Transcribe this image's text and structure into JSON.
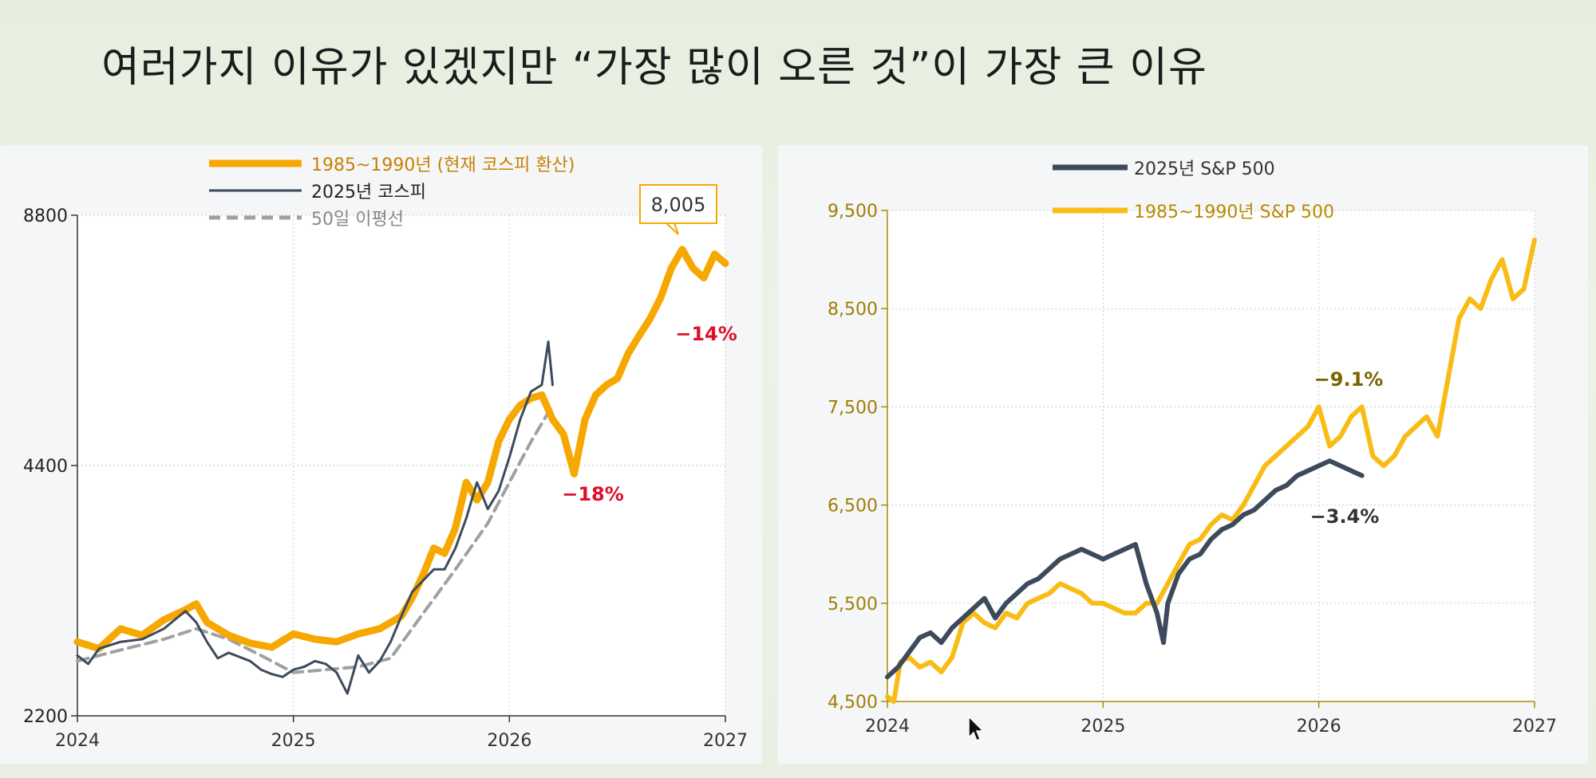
{
  "title": "여러가지 이유가 있겠지만 “가장 많이 오른 것”이 가장 큰 이유",
  "colors": {
    "orange": "#f6a800",
    "yellow": "#f8bc14",
    "dark": "#3d4a5c",
    "gray": "#a0a0a0",
    "red": "#e0102a",
    "olive": "#7a6400",
    "axis_left": "#222222",
    "axis_right": "#b08800"
  },
  "chart_data": [
    {
      "type": "line",
      "x_ticks": [
        "2024",
        "2025",
        "2026",
        "2027"
      ],
      "y_ticks": [
        "2200",
        "4400",
        "8800"
      ],
      "y_scale": "log",
      "ylim": [
        2200,
        8800
      ],
      "xlim": [
        2024,
        2027
      ],
      "grid": true,
      "legend_position": "top-center",
      "legend": [
        "1985~1990년 (현재 코스피 환산)",
        "2025년 코스피",
        "50일 이평선"
      ],
      "series": [
        {
          "name": "1985~1990년 (현재 코스피 환산)",
          "color": "#f6a800",
          "x": [
            2024.0,
            2024.1,
            2024.2,
            2024.3,
            2024.4,
            2024.5,
            2024.55,
            2024.6,
            2024.7,
            2024.8,
            2024.9,
            2025.0,
            2025.1,
            2025.2,
            2025.3,
            2025.4,
            2025.5,
            2025.55,
            2025.6,
            2025.65,
            2025.7,
            2025.75,
            2025.8,
            2025.85,
            2025.9,
            2025.95,
            2026.0,
            2026.05,
            2026.1,
            2026.15,
            2026.2,
            2026.25,
            2026.3,
            2026.35,
            2026.4,
            2026.45,
            2026.5,
            2026.55,
            2026.6,
            2026.65,
            2026.7,
            2026.75,
            2026.8,
            2026.85,
            2026.9,
            2026.95,
            2027.0
          ],
          "values": [
            2700,
            2650,
            2800,
            2750,
            2870,
            2950,
            3000,
            2850,
            2750,
            2690,
            2660,
            2760,
            2720,
            2700,
            2760,
            2800,
            2900,
            3050,
            3250,
            3500,
            3450,
            3700,
            4200,
            4000,
            4200,
            4700,
            5000,
            5200,
            5300,
            5350,
            5000,
            4800,
            4300,
            5000,
            5350,
            5500,
            5600,
            6000,
            6300,
            6600,
            7000,
            7600,
            8005,
            7600,
            7400,
            7900,
            7700
          ]
        },
        {
          "name": "2025년 코스피",
          "color": "#3d4a5c",
          "x": [
            2024.0,
            2024.05,
            2024.1,
            2024.2,
            2024.3,
            2024.4,
            2024.5,
            2024.55,
            2024.6,
            2024.65,
            2024.7,
            2024.8,
            2024.85,
            2024.9,
            2024.95,
            2025.0,
            2025.05,
            2025.1,
            2025.15,
            2025.2,
            2025.25,
            2025.3,
            2025.35,
            2025.4,
            2025.45,
            2025.5,
            2025.55,
            2025.6,
            2025.65,
            2025.7,
            2025.75,
            2025.8,
            2025.85,
            2025.9,
            2025.95,
            2026.0,
            2026.05,
            2026.1,
            2026.15,
            2026.18,
            2026.2
          ],
          "values": [
            2600,
            2540,
            2650,
            2700,
            2720,
            2800,
            2940,
            2850,
            2700,
            2580,
            2620,
            2560,
            2500,
            2470,
            2450,
            2500,
            2520,
            2560,
            2540,
            2480,
            2340,
            2600,
            2480,
            2560,
            2700,
            2900,
            3100,
            3200,
            3300,
            3300,
            3500,
            3800,
            4200,
            3900,
            4100,
            4500,
            5000,
            5400,
            5500,
            6200,
            5500
          ]
        },
        {
          "name": "50일 이평선",
          "color": "#a0a0a0",
          "x": [
            2024.0,
            2024.2,
            2024.4,
            2024.55,
            2024.7,
            2024.85,
            2025.0,
            2025.15,
            2025.3,
            2025.45,
            2025.6,
            2025.75,
            2025.9,
            2026.0,
            2026.1,
            2026.2
          ],
          "values": [
            2560,
            2640,
            2720,
            2800,
            2720,
            2600,
            2480,
            2500,
            2520,
            2580,
            2920,
            3300,
            3750,
            4200,
            4700,
            5200
          ]
        }
      ]
    },
    {
      "type": "line",
      "x_ticks": [
        "2024",
        "2025",
        "2026",
        "2027"
      ],
      "y_ticks": [
        "4,500",
        "5,500",
        "6,500",
        "7,500",
        "8,500",
        "9,500"
      ],
      "ylim": [
        4500,
        9500
      ],
      "xlim": [
        2024,
        2027
      ],
      "grid": true,
      "legend_position": "top-center",
      "legend": [
        "2025년 S&P 500",
        "1985~1990년 S&P 500"
      ],
      "series": [
        {
          "name": "2025년 S&P 500",
          "color": "#3d4a5c",
          "x": [
            2024.0,
            2024.05,
            2024.1,
            2024.15,
            2024.2,
            2024.25,
            2024.3,
            2024.35,
            2024.4,
            2024.45,
            2024.5,
            2024.55,
            2024.6,
            2024.65,
            2024.7,
            2024.75,
            2024.8,
            2024.85,
            2024.9,
            2024.95,
            2025.0,
            2025.05,
            2025.1,
            2025.15,
            2025.2,
            2025.25,
            2025.28,
            2025.3,
            2025.35,
            2025.4,
            2025.45,
            2025.5,
            2025.55,
            2025.6,
            2025.65,
            2025.7,
            2025.75,
            2025.8,
            2025.85,
            2025.9,
            2025.95,
            2026.0,
            2026.05,
            2026.1,
            2026.15,
            2026.2
          ],
          "values": [
            4750,
            4850,
            5000,
            5150,
            5200,
            5100,
            5250,
            5350,
            5450,
            5550,
            5350,
            5500,
            5600,
            5700,
            5750,
            5850,
            5950,
            6000,
            6050,
            6000,
            5950,
            6000,
            6050,
            6100,
            5700,
            5400,
            5100,
            5500,
            5800,
            5950,
            6000,
            6150,
            6250,
            6300,
            6400,
            6450,
            6550,
            6650,
            6700,
            6800,
            6850,
            6900,
            6950,
            6900,
            6850,
            6800
          ]
        },
        {
          "name": "1985~1990년 S&P 500",
          "color": "#f8bc14",
          "x": [
            2024.0,
            2024.03,
            2024.06,
            2024.1,
            2024.15,
            2024.2,
            2024.25,
            2024.3,
            2024.35,
            2024.4,
            2024.45,
            2024.5,
            2024.55,
            2024.6,
            2024.65,
            2024.7,
            2024.75,
            2024.8,
            2024.85,
            2024.9,
            2024.95,
            2025.0,
            2025.05,
            2025.1,
            2025.15,
            2025.2,
            2025.25,
            2025.3,
            2025.35,
            2025.4,
            2025.45,
            2025.5,
            2025.55,
            2025.6,
            2025.65,
            2025.7,
            2025.75,
            2025.8,
            2025.85,
            2025.9,
            2025.95,
            2026.0,
            2026.05,
            2026.1,
            2026.15,
            2026.2,
            2026.25,
            2026.3,
            2026.35,
            2026.4,
            2026.45,
            2026.5,
            2026.55,
            2026.6,
            2026.65,
            2026.7,
            2026.75,
            2026.8,
            2026.85,
            2026.9,
            2026.95,
            2027.0
          ],
          "values": [
            4550,
            4500,
            4900,
            4950,
            4850,
            4900,
            4800,
            4950,
            5300,
            5400,
            5300,
            5250,
            5400,
            5350,
            5500,
            5550,
            5600,
            5700,
            5650,
            5600,
            5500,
            5500,
            5450,
            5400,
            5400,
            5500,
            5500,
            5700,
            5900,
            6100,
            6150,
            6300,
            6400,
            6350,
            6500,
            6700,
            6900,
            7000,
            7100,
            7200,
            7300,
            7500,
            7100,
            7200,
            7400,
            7500,
            7000,
            6900,
            7000,
            7200,
            7300,
            7400,
            7200,
            7800,
            8400,
            8600,
            8500,
            8800,
            9000,
            8600,
            8700,
            9200
          ]
        }
      ]
    }
  ],
  "annotations_left": {
    "peak": "8,005",
    "drop1": "−18%",
    "drop2": "−14%"
  },
  "annotations_right": {
    "drop_yellow": "−9.1%",
    "drop_dark": "−3.4%"
  }
}
